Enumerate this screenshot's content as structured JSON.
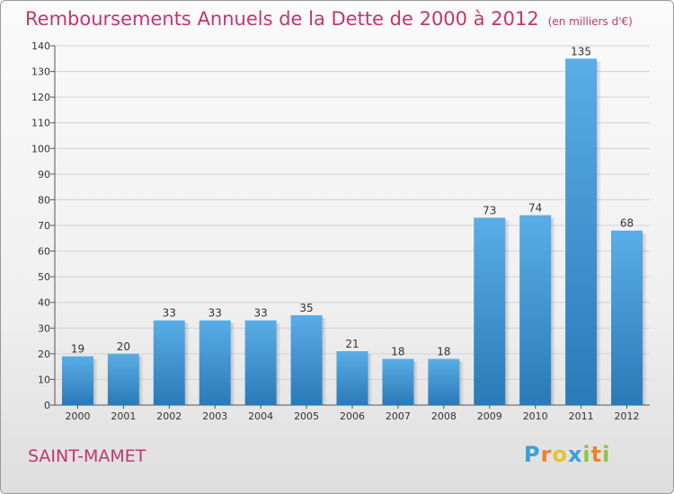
{
  "title": "Remboursements Annuels de la Dette de 2000 à 2012",
  "subtitle": "(en milliers d'€)",
  "commune": "SAINT-MAMET",
  "logo": {
    "letters": [
      "P",
      "r",
      "o",
      "x",
      "i",
      "t",
      "i"
    ],
    "colors": [
      "#3a9fd6",
      "#e9842f",
      "#e9c22f",
      "#3a9fd6",
      "#8cc63f",
      "#e9842f",
      "#8cc63f"
    ]
  },
  "colors": {
    "bar_top": "#5aade6",
    "bar_bottom": "#2a7ab8",
    "title": "#c2366e"
  },
  "chart_data": {
    "type": "bar",
    "categories": [
      "2000",
      "2001",
      "2002",
      "2003",
      "2004",
      "2005",
      "2006",
      "2007",
      "2008",
      "2009",
      "2010",
      "2011",
      "2012"
    ],
    "values": [
      19,
      20,
      33,
      33,
      33,
      35,
      21,
      18,
      18,
      73,
      74,
      135,
      68
    ],
    "ylim": [
      0,
      140
    ],
    "yticks": [
      0,
      10,
      20,
      30,
      40,
      50,
      60,
      70,
      80,
      90,
      100,
      110,
      120,
      130,
      140
    ],
    "grid": true
  }
}
